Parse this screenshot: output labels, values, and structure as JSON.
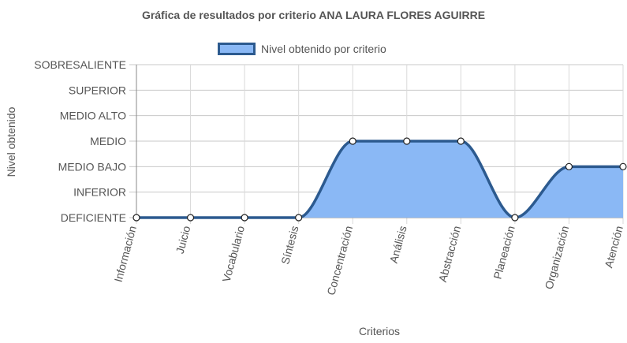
{
  "chart_data": {
    "type": "area",
    "title": "Gráfica de resultados por criterio ANA LAURA FLORES AGUIRRE",
    "xlabel": "Criterios",
    "ylabel": "Nivel obtenido",
    "categories": [
      "Información",
      "Juicio",
      "Vocabulario",
      "Síntesis",
      "Concentración",
      "Análisis",
      "Abstracción",
      "Planeación",
      "Organización",
      "Atención"
    ],
    "y_levels": [
      "DEFICIENTE",
      "INFERIOR",
      "MEDIO BAJO",
      "MEDIO",
      "MEDIO ALTO",
      "SUPERIOR",
      "SOBRESALIENTE"
    ],
    "ylim": [
      0,
      6
    ],
    "series": [
      {
        "name": "Nivel obtenido por criterio",
        "values": [
          0,
          0,
          0,
          0,
          3,
          3,
          3,
          0,
          2,
          2
        ]
      }
    ],
    "legend_position": "top",
    "grid": true,
    "colors": {
      "fill": "#8ab8f5",
      "line": "#2c5a8f",
      "grid": "#d9d9d9",
      "axis": "#555555"
    }
  }
}
